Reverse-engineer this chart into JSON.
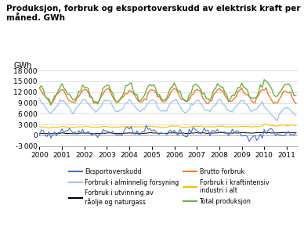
{
  "title": "Produksjon, forbruk og eksportoverskudd av elektrisk kraft per\nmåned. GWh",
  "ylabel": "GWh",
  "ylim": [
    -3000,
    18000
  ],
  "yticks": [
    -3000,
    0,
    3000,
    6000,
    9000,
    12000,
    15000,
    18000
  ],
  "xstart": 2000.0,
  "xend": 2011.5,
  "colors": {
    "eksportoverskudd": "#4472C4",
    "forbruk_alm": "#9DC3E6",
    "forbruk_utvinning": "#000000",
    "brutto_forbruk": "#ED7D31",
    "forbruk_kraft": "#FFC000",
    "total_prod": "#70AD47"
  }
}
